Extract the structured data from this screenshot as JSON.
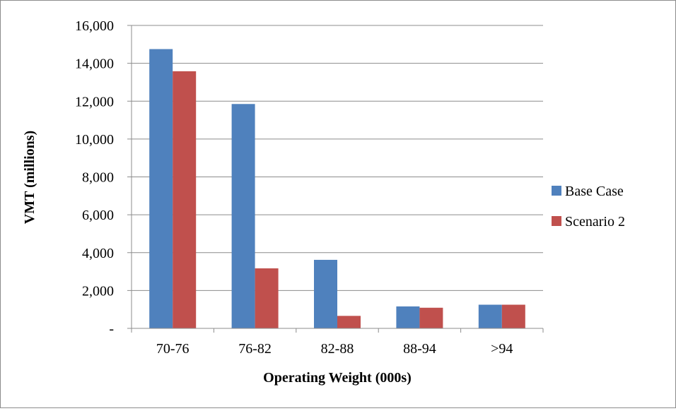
{
  "chart_data": {
    "type": "bar",
    "title": "",
    "xlabel": "Operating Weight (000s)",
    "ylabel": "VMT (millions)",
    "categories": [
      "70-76",
      "76-82",
      "82-88",
      "88-94",
      ">94"
    ],
    "series": [
      {
        "name": "Base Case",
        "color": "#4f81bd",
        "values": [
          14750,
          11850,
          3620,
          1160,
          1250
        ]
      },
      {
        "name": "Scenario 2",
        "color": "#c0504d",
        "values": [
          13580,
          3170,
          660,
          1090,
          1250
        ]
      }
    ],
    "ylim": [
      0,
      16000
    ],
    "yticks": [
      0,
      2000,
      4000,
      6000,
      8000,
      10000,
      12000,
      14000,
      16000
    ],
    "ytick_labels": [
      "-",
      "2,000",
      "4,000",
      "6,000",
      "8,000",
      "10,000",
      "12,000",
      "14,000",
      "16,000"
    ],
    "grid": true,
    "legend_position": "right"
  }
}
